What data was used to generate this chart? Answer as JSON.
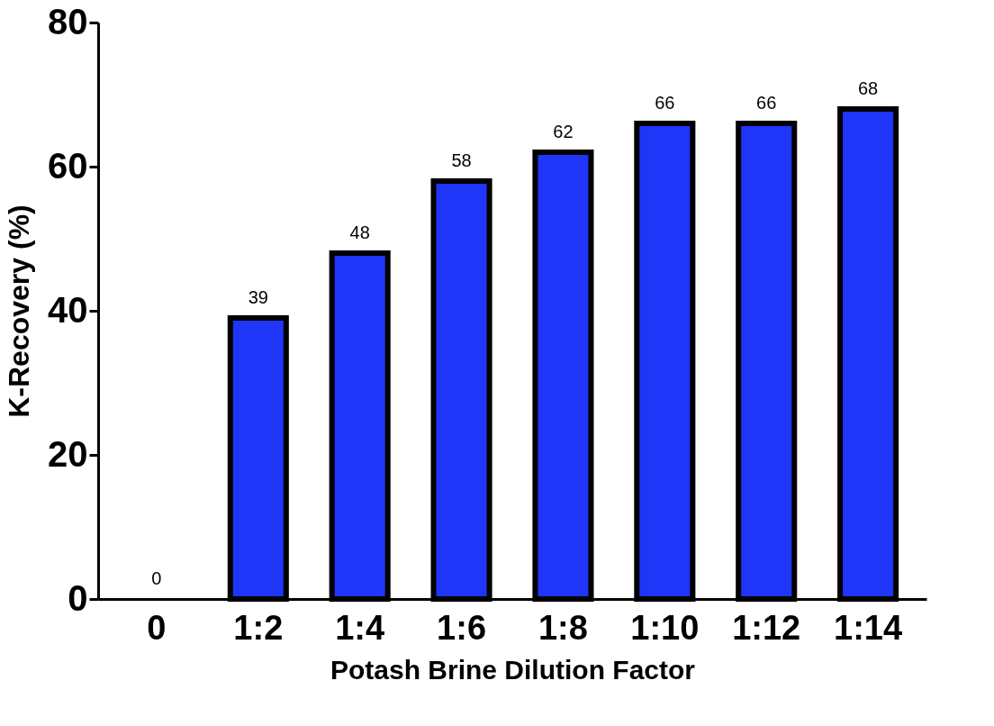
{
  "chart_data": {
    "type": "bar",
    "categories": [
      "0",
      "1:2",
      "1:4",
      "1:6",
      "1:8",
      "1:10",
      "1:12",
      "1:14"
    ],
    "values": [
      0,
      39,
      48,
      58,
      62,
      66,
      66,
      68
    ],
    "color": "#1f35f7",
    "xlabel": "Potash Brine Dilution Factor",
    "ylabel": "K-Recovery (%)",
    "ylim": [
      0,
      80
    ],
    "yticks": [
      0,
      20,
      40,
      60,
      80
    ],
    "grid": false,
    "data_labels": true
  }
}
